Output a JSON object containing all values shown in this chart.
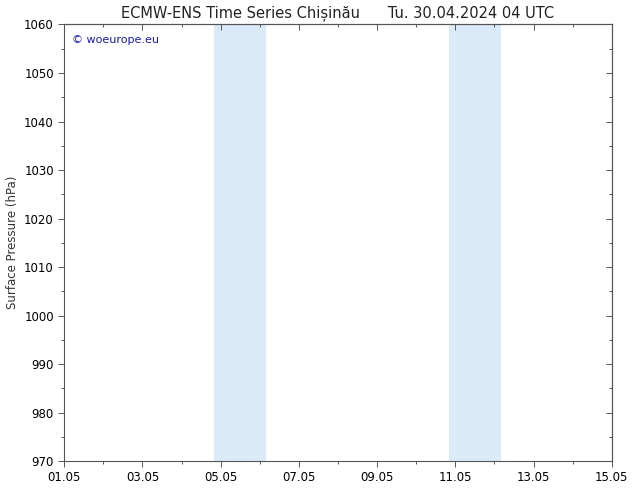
{
  "title_left": "ECMW-ENS Time Series Chișinău",
  "title_right": "Tu. 30.04.2024 04 UTC",
  "ylabel": "Surface Pressure (hPa)",
  "ylim": [
    970,
    1060
  ],
  "yticks": [
    970,
    980,
    990,
    1000,
    1010,
    1020,
    1030,
    1040,
    1050,
    1060
  ],
  "xlabel_ticks_labels": [
    "01.05",
    "03.05",
    "05.05",
    "07.05",
    "09.05",
    "11.05",
    "13.05",
    "15.05"
  ],
  "xlabel_ticks_pos": [
    0,
    2,
    4,
    6,
    8,
    10,
    12,
    14
  ],
  "xlim_start": 0,
  "xlim_end": 14,
  "shaded_bands": [
    {
      "x_start": 3.83,
      "x_end": 4.33
    },
    {
      "x_start": 4.33,
      "x_end": 5.17
    },
    {
      "x_start": 9.83,
      "x_end": 10.33
    },
    {
      "x_start": 10.33,
      "x_end": 11.17
    }
  ],
  "shade_color": "#daeaf8",
  "background_color": "#ffffff",
  "plot_bg_color": "#ffffff",
  "watermark_text": "© woeurope.eu",
  "watermark_color": "#1a1aaa",
  "tick_label_fontsize": 8.5,
  "title_fontsize": 10.5,
  "ylabel_fontsize": 8.5,
  "spine_color": "#555555"
}
